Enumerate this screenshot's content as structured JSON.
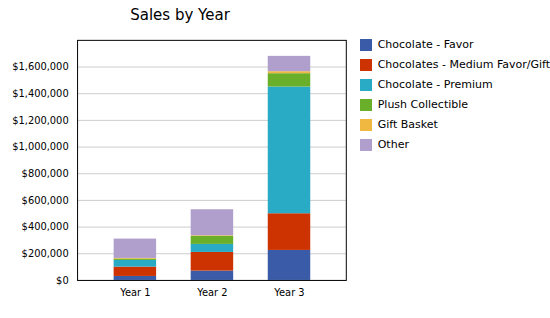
{
  "chart_data": {
    "type": "bar",
    "title": "Sales by Year",
    "categories": [
      "Year 1",
      "Year 2",
      "Year 3"
    ],
    "series": [
      {
        "name": "Chocolate - Favor",
        "color": "#3A5BA8",
        "values": [
          30000,
          70000,
          225000
        ]
      },
      {
        "name": "Chocolates - Medium Favor/Gift",
        "color": "#CC3300",
        "values": [
          70000,
          140000,
          275000
        ]
      },
      {
        "name": "Chocolate - Premium",
        "color": "#29AAC5",
        "values": [
          50000,
          60000,
          950000
        ]
      },
      {
        "name": "Plush Collectible",
        "color": "#6AAF2A",
        "values": [
          10000,
          60000,
          100000
        ]
      },
      {
        "name": "Gift Basket",
        "color": "#F0B840",
        "values": [
          5000,
          5000,
          15000
        ]
      },
      {
        "name": "Other",
        "color": "#B09FCC",
        "values": [
          145000,
          195000,
          115000
        ]
      }
    ],
    "ylim": [
      0,
      1800000
    ],
    "yticks": [
      {
        "value": 0,
        "label": "$0"
      },
      {
        "value": 200000,
        "label": "$200,000"
      },
      {
        "value": 400000,
        "label": "$400,000"
      },
      {
        "value": 600000,
        "label": "$600,000"
      },
      {
        "value": 800000,
        "label": "$800,000"
      },
      {
        "value": 1000000,
        "label": "$1,000,000"
      },
      {
        "value": 1200000,
        "label": "$1,200,000"
      },
      {
        "value": 1400000,
        "label": "$1,400,000"
      },
      {
        "value": 1600000,
        "label": "$1,600,000"
      }
    ],
    "grid": true,
    "stacked": true,
    "legend": "upper right"
  }
}
